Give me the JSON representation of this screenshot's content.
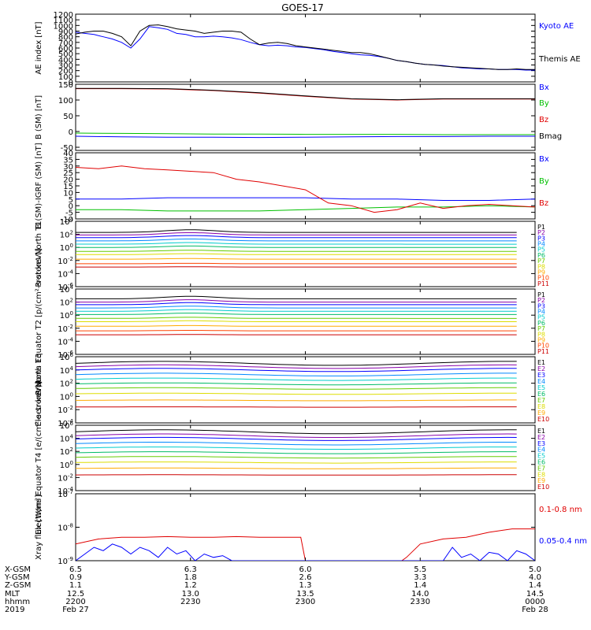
{
  "title": "GOES-17",
  "colors": {
    "black": "#000000",
    "blue": "#0000ff",
    "red": "#e00000",
    "green": "#00c000"
  },
  "chart_data": [
    {
      "type": "line",
      "ylabel": "AE index [nT]",
      "ylim": [
        0,
        1200
      ],
      "yticks": [
        0,
        100,
        200,
        300,
        400,
        500,
        600,
        700,
        800,
        900,
        1000,
        1100,
        1200
      ],
      "series": [
        {
          "name": "Kyoto AE",
          "color": "#0000ff",
          "x": [
            0,
            2,
            4,
            6,
            8,
            10,
            12,
            14,
            16,
            18,
            20,
            22,
            24,
            26,
            28,
            30,
            32,
            34,
            36,
            38,
            40,
            42,
            44,
            46,
            48,
            50,
            52,
            54,
            56,
            58,
            60,
            62,
            64,
            66,
            68,
            70,
            72,
            74,
            76,
            78,
            80,
            82,
            84,
            86,
            88,
            90,
            92,
            94,
            96,
            98,
            100
          ],
          "y": [
            880,
            860,
            840,
            800,
            760,
            700,
            600,
            760,
            980,
            960,
            930,
            860,
            840,
            800,
            800,
            810,
            800,
            780,
            750,
            700,
            660,
            640,
            650,
            640,
            620,
            610,
            590,
            570,
            540,
            520,
            500,
            480,
            470,
            450,
            420,
            380,
            360,
            330,
            310,
            300,
            290,
            270,
            250,
            240,
            230,
            230,
            220,
            220,
            220,
            210,
            210
          ]
        },
        {
          "name": "Themis AE",
          "color": "#000000",
          "x": [
            0,
            2,
            4,
            6,
            8,
            10,
            12,
            14,
            16,
            18,
            20,
            22,
            24,
            26,
            28,
            30,
            32,
            34,
            36,
            38,
            40,
            42,
            44,
            46,
            48,
            50,
            52,
            54,
            56,
            58,
            60,
            62,
            64,
            66,
            68,
            70,
            72,
            74,
            76,
            78,
            80,
            82,
            84,
            86,
            88,
            90,
            92,
            94,
            96,
            98,
            100
          ],
          "y": [
            850,
            880,
            900,
            900,
            860,
            800,
            640,
            900,
            1000,
            1010,
            980,
            940,
            920,
            900,
            860,
            880,
            900,
            900,
            880,
            760,
            660,
            690,
            700,
            680,
            640,
            620,
            600,
            580,
            560,
            540,
            520,
            520,
            500,
            460,
            420,
            380,
            360,
            330,
            310,
            300,
            280,
            270,
            260,
            250,
            240,
            230,
            220,
            220,
            230,
            220,
            220
          ]
        }
      ]
    },
    {
      "type": "line",
      "ylabel": "B (SM) [nT]",
      "ylim": [
        -60,
        150
      ],
      "yticks": [
        -50,
        0,
        50,
        100,
        150
      ],
      "series": [
        {
          "name": "Bx",
          "color": "#0000ff",
          "x": [
            0,
            10,
            20,
            30,
            40,
            50,
            60,
            70,
            80,
            90,
            100
          ],
          "y": [
            -15,
            -17,
            -18,
            -18,
            -19,
            -18,
            -17,
            -16,
            -16,
            -15,
            -15
          ]
        },
        {
          "name": "By",
          "color": "#00c000",
          "x": [
            0,
            10,
            20,
            30,
            40,
            50,
            60,
            70,
            80,
            90,
            100
          ],
          "y": [
            -5,
            -6,
            -7,
            -8,
            -8,
            -9,
            -9,
            -9,
            -10,
            -10,
            -10
          ]
        },
        {
          "name": "Bz",
          "color": "#e00000",
          "x": [
            0,
            10,
            20,
            30,
            40,
            50,
            60,
            70,
            80,
            90,
            100
          ],
          "y": [
            136,
            136,
            135,
            130,
            122,
            112,
            103,
            100,
            103,
            103,
            103
          ]
        },
        {
          "name": "Bmag",
          "color": "#000000",
          "x": [
            0,
            10,
            20,
            30,
            40,
            50,
            60,
            70,
            80,
            90,
            100
          ],
          "y": [
            137,
            137,
            136,
            131,
            123,
            113,
            104,
            101,
            104,
            104,
            104
          ]
        }
      ]
    },
    {
      "type": "line",
      "ylabel": "B (SM)-IGRF (SM) [nT]",
      "ylim": [
        -10,
        40
      ],
      "yticks": [
        -10,
        -5,
        0,
        5,
        10,
        15,
        20,
        25,
        30,
        35,
        40
      ],
      "series": [
        {
          "name": "Bx",
          "color": "#0000ff",
          "x": [
            0,
            10,
            20,
            30,
            40,
            50,
            60,
            70,
            80,
            90,
            100
          ],
          "y": [
            5,
            5,
            6,
            6,
            6,
            6,
            5,
            5,
            4,
            4,
            5
          ]
        },
        {
          "name": "By",
          "color": "#00c000",
          "x": [
            0,
            10,
            20,
            30,
            40,
            50,
            60,
            70,
            80,
            90,
            100
          ],
          "y": [
            -3,
            -3,
            -4,
            -4,
            -4,
            -3,
            -2,
            -1,
            -1,
            0,
            -1
          ]
        },
        {
          "name": "Bz",
          "color": "#e00000",
          "x": [
            0,
            5,
            10,
            15,
            20,
            25,
            30,
            35,
            40,
            45,
            50,
            55,
            60,
            65,
            70,
            75,
            80,
            85,
            90,
            95,
            100
          ],
          "y": [
            29,
            28,
            30,
            28,
            27,
            26,
            25,
            20,
            18,
            15,
            12,
            2,
            0,
            -5,
            -3,
            2,
            -2,
            0,
            1,
            0,
            -1
          ]
        }
      ]
    },
    {
      "type": "line",
      "ylabel": "Protons North T1",
      "yscale": "log",
      "ylim": [
        -6,
        4
      ],
      "ytick_labels": [
        "10^4",
        "10^2",
        "10^0",
        "10^-2",
        "10^-4",
        "10^-6"
      ],
      "legend": [
        "P1",
        "P2",
        "P3",
        "P4",
        "P5",
        "P6",
        "P7",
        "P8",
        "P9",
        "P10",
        "P11"
      ],
      "series_colors": [
        "#000000",
        "#8800aa",
        "#0000ff",
        "#0088ff",
        "#00cccc",
        "#00bb66",
        "#66cc00",
        "#dddd00",
        "#ffaa00",
        "#ff4400",
        "#cc0000"
      ],
      "levels": [
        2.3,
        1.9,
        1.5,
        1.0,
        0.5,
        0.0,
        -0.6,
        -1.1,
        -1.8,
        -2.5,
        -3.0
      ]
    },
    {
      "type": "line",
      "ylabel": "Protons Equator T2 [p/(cm²-s-sr-keV)]",
      "yscale": "log",
      "ylim": [
        -6,
        4
      ],
      "ytick_labels": [
        "10^4",
        "10^2",
        "10^0",
        "10^-2",
        "10^-4",
        "10^-6"
      ],
      "legend": [
        "P1",
        "P2",
        "P3",
        "P4",
        "P5",
        "P6",
        "P7",
        "P8",
        "P9",
        "P10",
        "P11"
      ],
      "series_colors": [
        "#000000",
        "#8800aa",
        "#0000ff",
        "#0088ff",
        "#00cccc",
        "#00bb66",
        "#66cc00",
        "#dddd00",
        "#ffaa00",
        "#ff4400",
        "#cc0000"
      ],
      "levels": [
        2.5,
        2.0,
        1.6,
        1.1,
        0.6,
        0.1,
        -0.5,
        -1.0,
        -1.7,
        -2.4,
        -3.0
      ]
    },
    {
      "type": "line",
      "ylabel": "Electrons North T3",
      "yscale": "log",
      "ylim": [
        -4,
        6
      ],
      "ytick_labels": [
        "10^6",
        "10^4",
        "10^2",
        "10^0",
        "10^-2",
        "10^-4"
      ],
      "legend": [
        "E1",
        "E2",
        "E3",
        "E4",
        "E5",
        "E6",
        "E7",
        "E8",
        "E9",
        "E10"
      ],
      "series_colors": [
        "#000000",
        "#8800aa",
        "#0000ff",
        "#0088ff",
        "#00cccc",
        "#00bb66",
        "#66cc00",
        "#dddd00",
        "#ffaa00",
        "#cc0000"
      ],
      "levels": [
        5.0,
        4.5,
        4.0,
        3.3,
        2.6,
        1.9,
        1.2,
        0.4,
        -0.6,
        -1.6
      ]
    },
    {
      "type": "line",
      "ylabel": "Electrons Equator T4 [e/(cm²-s-sr-keV)]",
      "yscale": "log",
      "ylim": [
        -4,
        6
      ],
      "ytick_labels": [
        "10^6",
        "10^4",
        "10^2",
        "10^0",
        "10^-2",
        "10^-4"
      ],
      "legend": [
        "E1",
        "E2",
        "E3",
        "E4",
        "E5",
        "E6",
        "E7",
        "E8",
        "E9",
        "E10"
      ],
      "series_colors": [
        "#000000",
        "#8800aa",
        "#0000ff",
        "#0088ff",
        "#00cccc",
        "#00bb66",
        "#66cc00",
        "#dddd00",
        "#ffaa00",
        "#cc0000"
      ],
      "levels": [
        5.0,
        4.4,
        3.9,
        3.2,
        2.5,
        1.8,
        1.1,
        0.3,
        -0.6,
        -1.6
      ]
    },
    {
      "type": "line",
      "ylabel": "Xray flux [W/m²]",
      "yscale": "log",
      "ylim": [
        -9,
        -7
      ],
      "ytick_labels": [
        "10^-7",
        "10^-8",
        "10^-9"
      ],
      "series": [
        {
          "name": "0.1-0.8 nm",
          "color": "#e00000",
          "x": [
            0,
            5,
            10,
            15,
            20,
            25,
            30,
            35,
            40,
            45,
            49,
            50,
            71,
            72,
            75,
            80,
            85,
            90,
            95,
            100
          ],
          "y": [
            -8.5,
            -8.35,
            -8.3,
            -8.3,
            -8.28,
            -8.3,
            -8.3,
            -8.28,
            -8.3,
            -8.3,
            -8.3,
            -9,
            -9,
            -8.9,
            -8.5,
            -8.35,
            -8.3,
            -8.15,
            -8.05,
            -8.05
          ]
        },
        {
          "name": "0.05-0.4 nm",
          "color": "#0000ff",
          "x": [
            0,
            2,
            4,
            6,
            8,
            10,
            12,
            14,
            16,
            18,
            20,
            22,
            24,
            26,
            28,
            30,
            32,
            34,
            36,
            80,
            82,
            84,
            86,
            88,
            90,
            92,
            94,
            96,
            98,
            100
          ],
          "y": [
            -9,
            -8.8,
            -8.6,
            -8.7,
            -8.5,
            -8.6,
            -8.8,
            -8.6,
            -8.7,
            -8.9,
            -8.6,
            -8.8,
            -8.7,
            -9,
            -8.8,
            -8.9,
            -8.85,
            -9,
            -9,
            -9,
            -8.6,
            -8.9,
            -8.8,
            -9,
            -8.75,
            -8.8,
            -9,
            -8.7,
            -8.8,
            -9
          ]
        }
      ]
    }
  ],
  "legends": {
    "p0": [
      "Kyoto AE",
      "Themis AE"
    ],
    "p1": [
      "Bx",
      "By",
      "Bz",
      "Bmag"
    ],
    "p2": [
      "Bx",
      "By",
      "Bz"
    ],
    "p7": [
      "0.1-0.8 nm",
      "0.05-0.4 nm"
    ]
  },
  "orbit": {
    "row_labels": [
      "X-GSM",
      "Y-GSM",
      "Z-GSM",
      "MLT",
      "hhmm",
      "2019"
    ],
    "columns": [
      [
        "6.5",
        "0.9",
        "1.1",
        "12.5",
        "2200",
        "Feb 27"
      ],
      [
        "6.3",
        "1.8",
        "1.2",
        "13.0",
        "2230",
        ""
      ],
      [
        "6.0",
        "2.6",
        "1.3",
        "13.5",
        "2300",
        ""
      ],
      [
        "5.5",
        "3.3",
        "1.4",
        "14.0",
        "2330",
        ""
      ],
      [
        "5.0",
        "4.0",
        "1.4",
        "14.5",
        "0000",
        "Feb 28"
      ]
    ]
  }
}
